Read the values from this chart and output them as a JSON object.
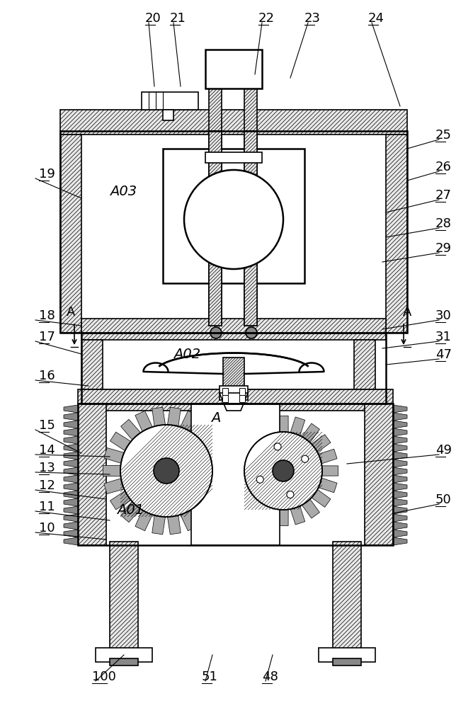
{
  "title": "",
  "bg_color": "#ffffff",
  "line_color": "#000000",
  "hatch_color": "#000000",
  "label_numbers": [
    "10",
    "11",
    "12",
    "13",
    "14",
    "15",
    "16",
    "17",
    "18",
    "19",
    "20",
    "21",
    "22",
    "23",
    "24",
    "25",
    "26",
    "27",
    "28",
    "29",
    "30",
    "31",
    "47",
    "48",
    "49",
    "50",
    "51",
    "100",
    "A01",
    "A02",
    "A03",
    "A"
  ],
  "figsize": [
    6.68,
    10.0
  ],
  "dpi": 100
}
